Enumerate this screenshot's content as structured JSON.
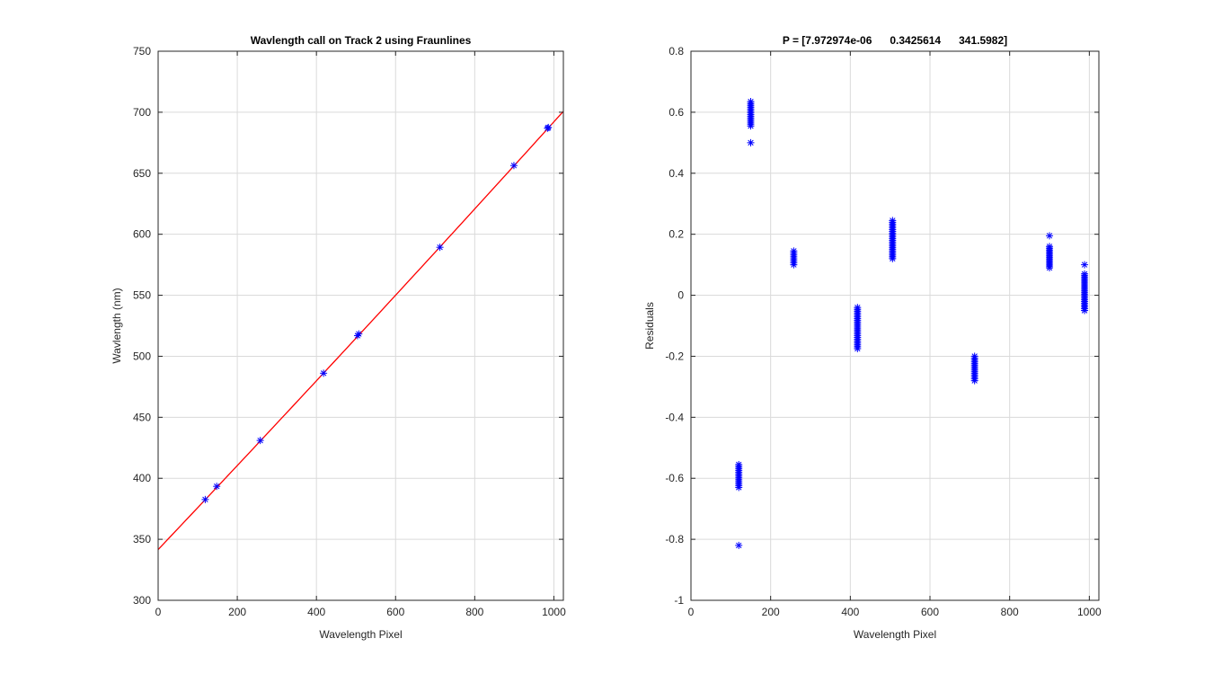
{
  "figure": {
    "background": "#ffffff",
    "axes_color": "#262626",
    "grid_color": "#dadada"
  },
  "chart_data": [
    {
      "type": "scatter",
      "title": "Wavlength call on Track 2 using Fraunlines",
      "xlabel": "Wavelength Pixel",
      "ylabel": "Wavlength (nm)",
      "xlim": [
        0,
        1024
      ],
      "ylim": [
        300,
        750
      ],
      "xticks": [
        0,
        200,
        400,
        600,
        800,
        1000
      ],
      "yticks": [
        300,
        350,
        400,
        450,
        500,
        550,
        600,
        650,
        700,
        750
      ],
      "grid": true,
      "series": [
        {
          "kind": "markers",
          "marker": "asterisk",
          "color": "#0000ff",
          "points": [
            [
              119,
              382.6
            ],
            [
              148,
              393.4
            ],
            [
              258,
              431.0
            ],
            [
              418,
              486.1
            ],
            [
              504,
              516.9
            ],
            [
              507,
              518.3
            ],
            [
              712,
              589.3
            ],
            [
              899,
              656.3
            ],
            [
              984,
              686.9
            ],
            [
              986,
              687.5
            ]
          ]
        },
        {
          "kind": "line",
          "color": "#ff0000",
          "fit_coefficients": [
            7.972974e-06,
            0.3425614,
            341.5982
          ],
          "x_range": [
            0,
            1024
          ]
        }
      ]
    },
    {
      "type": "scatter",
      "title": "P = [7.972974e-06      0.3425614      341.5982]",
      "xlabel": "Wavelength Pixel",
      "ylabel": "Residuals",
      "xlim": [
        0,
        1024
      ],
      "ylim": [
        -1,
        0.8
      ],
      "xticks": [
        0,
        200,
        400,
        600,
        800,
        1000
      ],
      "yticks": [
        -1,
        -0.8,
        -0.6,
        -0.4,
        -0.2,
        0,
        0.2,
        0.4,
        0.6,
        0.8
      ],
      "ytick_labels": [
        "-1",
        "-0.8",
        "-0.6",
        "-0.4",
        "-0.2",
        "0",
        "0.2",
        "0.4",
        "0.6",
        "0.8"
      ],
      "grid": true,
      "series": [
        {
          "kind": "markers",
          "marker": "asterisk",
          "color": "#0000ff",
          "clusters": [
            {
              "x": 120,
              "y_min": -0.63,
              "y_max": -0.555,
              "outliers": [
                -0.82
              ]
            },
            {
              "x": 150,
              "y_min": 0.555,
              "y_max": 0.635,
              "outliers": [
                0.5
              ]
            },
            {
              "x": 258,
              "y_min": 0.1,
              "y_max": 0.145,
              "outliers": []
            },
            {
              "x": 418,
              "y_min": -0.175,
              "y_max": -0.04,
              "outliers": []
            },
            {
              "x": 506,
              "y_min": 0.12,
              "y_max": 0.245,
              "outliers": []
            },
            {
              "x": 712,
              "y_min": -0.28,
              "y_max": -0.2,
              "outliers": []
            },
            {
              "x": 900,
              "y_min": 0.09,
              "y_max": 0.16,
              "outliers": [
                0.195
              ]
            },
            {
              "x": 988,
              "y_min": -0.05,
              "y_max": 0.07,
              "outliers": [
                0.1
              ]
            }
          ]
        }
      ]
    }
  ]
}
